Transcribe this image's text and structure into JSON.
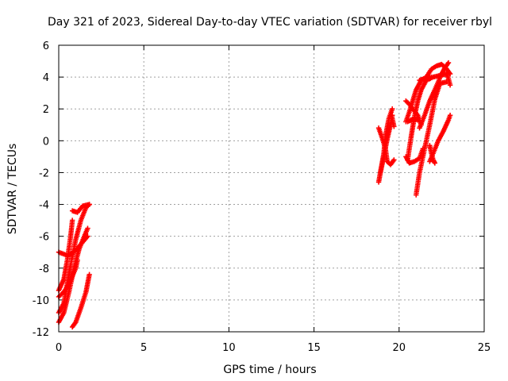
{
  "chart_data": {
    "type": "scatter",
    "title": "Day 321 of 2023, Sidereal Day-to-day VTEC variation (SDTVAR) for receiver rbyl",
    "xlabel": "GPS time / hours",
    "ylabel": "SDTVAR / TECUs",
    "xlim": [
      0,
      25
    ],
    "ylim": [
      -12,
      6
    ],
    "xticks": [
      0,
      5,
      10,
      15,
      20,
      25
    ],
    "yticks": [
      -12,
      -10,
      -8,
      -6,
      -4,
      -2,
      0,
      2,
      4,
      6
    ],
    "grid": true,
    "marker": "plus",
    "color": "#ff0000",
    "series": [
      {
        "segments": [
          [
            [
              0.0,
              -7.0
            ],
            [
              0.5,
              -7.2
            ],
            [
              0.9,
              -7.0
            ],
            [
              1.3,
              -6.5
            ],
            [
              1.7,
              -6.0
            ]
          ],
          [
            [
              0.0,
              -11.4
            ],
            [
              0.3,
              -10.8
            ],
            [
              0.6,
              -9.5
            ],
            [
              0.9,
              -8.0
            ],
            [
              1.2,
              -6.8
            ],
            [
              1.5,
              -6.0
            ],
            [
              1.7,
              -5.5
            ]
          ],
          [
            [
              0.0,
              -10.8
            ],
            [
              0.3,
              -10.2
            ],
            [
              0.5,
              -9.0
            ],
            [
              0.7,
              -7.8
            ],
            [
              1.0,
              -6.2
            ],
            [
              1.3,
              -5.0
            ],
            [
              1.6,
              -4.2
            ],
            [
              1.8,
              -4.0
            ]
          ],
          [
            [
              0.0,
              -9.4
            ],
            [
              0.3,
              -8.7
            ],
            [
              0.5,
              -7.5
            ],
            [
              0.7,
              -6.0
            ],
            [
              0.8,
              -5.0
            ]
          ],
          [
            [
              0.0,
              -9.8
            ],
            [
              0.3,
              -9.5
            ],
            [
              0.6,
              -9.0
            ],
            [
              0.8,
              -8.5
            ],
            [
              1.0,
              -8.0
            ],
            [
              1.1,
              -7.5
            ]
          ],
          [
            [
              0.8,
              -4.4
            ],
            [
              1.1,
              -4.5
            ],
            [
              1.4,
              -4.1
            ],
            [
              1.8,
              -4.0
            ]
          ],
          [
            [
              0.8,
              -11.7
            ],
            [
              1.0,
              -11.4
            ],
            [
              1.3,
              -10.5
            ],
            [
              1.6,
              -9.5
            ],
            [
              1.8,
              -8.4
            ]
          ]
        ]
      },
      {
        "segments": [
          [
            [
              18.8,
              -2.6
            ],
            [
              18.9,
              -2.0
            ],
            [
              19.1,
              -0.8
            ],
            [
              19.2,
              0.3
            ],
            [
              19.4,
              1.4
            ],
            [
              19.6,
              2.0
            ]
          ],
          [
            [
              18.8,
              0.8
            ],
            [
              19.0,
              0.2
            ],
            [
              19.2,
              -0.5
            ],
            [
              19.3,
              -1.3
            ],
            [
              19.5,
              -1.5
            ],
            [
              19.7,
              -1.2
            ]
          ],
          [
            [
              18.9,
              -2.0
            ],
            [
              19.1,
              -1.0
            ],
            [
              19.3,
              0.1
            ],
            [
              19.5,
              1.0
            ],
            [
              19.6,
              1.6
            ]
          ],
          [
            [
              19.2,
              -0.1
            ],
            [
              19.4,
              0.8
            ],
            [
              19.6,
              1.4
            ],
            [
              19.7,
              0.9
            ]
          ],
          [
            [
              20.4,
              1.2
            ],
            [
              20.6,
              1.8
            ],
            [
              20.8,
              2.5
            ],
            [
              21.0,
              3.2
            ],
            [
              21.3,
              3.8
            ],
            [
              21.6,
              4.0
            ],
            [
              21.8,
              3.9
            ]
          ],
          [
            [
              20.4,
              -1.0
            ],
            [
              20.6,
              -1.4
            ],
            [
              20.9,
              -1.3
            ],
            [
              21.2,
              -1.1
            ],
            [
              21.4,
              -0.5
            ]
          ],
          [
            [
              20.4,
              2.5
            ],
            [
              20.6,
              2.3
            ],
            [
              20.8,
              2.0
            ],
            [
              21.1,
              1.6
            ],
            [
              21.3,
              1.0
            ]
          ],
          [
            [
              20.5,
              -1.2
            ],
            [
              20.7,
              0.2
            ],
            [
              20.9,
              1.5
            ],
            [
              21.1,
              2.5
            ],
            [
              21.3,
              3.2
            ],
            [
              21.6,
              3.8
            ],
            [
              22.0,
              4.0
            ],
            [
              22.4,
              4.1
            ],
            [
              22.8,
              4.2
            ]
          ],
          [
            [
              20.5,
              1.2
            ],
            [
              20.7,
              1.3
            ],
            [
              20.9,
              1.4
            ],
            [
              21.1,
              1.3
            ]
          ],
          [
            [
              21.0,
              -3.4
            ],
            [
              21.2,
              -2.0
            ],
            [
              21.5,
              -0.5
            ],
            [
              21.8,
              1.0
            ],
            [
              22.1,
              2.6
            ],
            [
              22.4,
              3.6
            ],
            [
              22.8,
              3.7
            ]
          ],
          [
            [
              21.2,
              0.8
            ],
            [
              21.5,
              1.6
            ],
            [
              21.8,
              2.5
            ],
            [
              22.1,
              3.2
            ],
            [
              22.3,
              3.7
            ],
            [
              22.5,
              4.2
            ],
            [
              22.7,
              4.6
            ],
            [
              22.9,
              4.9
            ]
          ],
          [
            [
              21.6,
              4.0
            ],
            [
              21.9,
              4.5
            ],
            [
              22.2,
              4.7
            ],
            [
              22.5,
              4.8
            ],
            [
              22.8,
              4.5
            ],
            [
              23.0,
              4.2
            ]
          ],
          [
            [
              21.8,
              -1.3
            ],
            [
              22.0,
              -0.8
            ],
            [
              22.3,
              0.0
            ],
            [
              22.6,
              0.6
            ],
            [
              22.9,
              1.3
            ],
            [
              23.0,
              1.6
            ]
          ],
          [
            [
              21.8,
              -0.3
            ],
            [
              21.9,
              -0.8
            ],
            [
              22.0,
              -1.2
            ],
            [
              22.1,
              -1.4
            ]
          ],
          [
            [
              21.2,
              3.8
            ],
            [
              21.5,
              3.9
            ],
            [
              21.7,
              4.0
            ],
            [
              21.9,
              4.0
            ]
          ],
          [
            [
              22.8,
              4.2
            ],
            [
              22.9,
              3.9
            ],
            [
              23.0,
              3.5
            ]
          ]
        ]
      }
    ]
  }
}
